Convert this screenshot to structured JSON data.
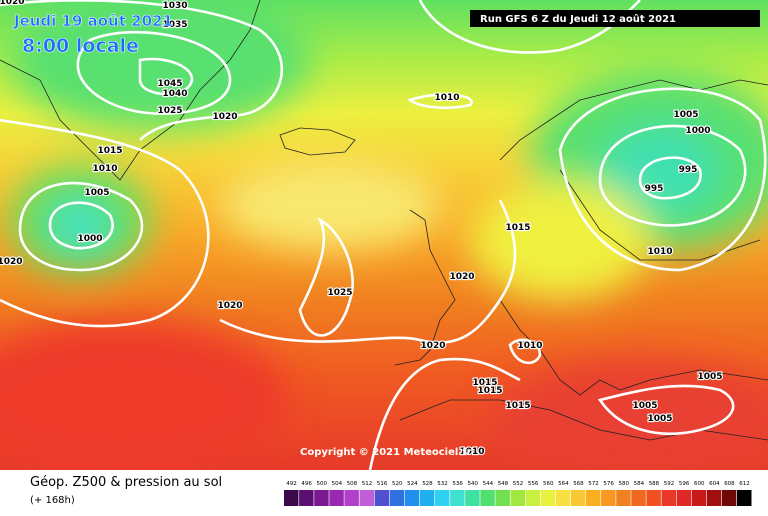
{
  "header": {
    "valid_date": "Jeudi 19 août 2021",
    "local_time": "8:00 locale",
    "run": "Run GFS 6 Z du Jeudi 12 août 2021"
  },
  "copyright": "Copyright © 2021 Meteociel.fr",
  "footer": {
    "title": "Géop. Z500 & pression au sol",
    "lead": "(+ 168h)"
  },
  "isobar_labels": [
    1020,
    1030,
    1035,
    1045,
    1040,
    1025,
    1020,
    1010,
    1005,
    1000,
    995,
    995,
    1015,
    1010,
    1005,
    1000,
    1020,
    1015,
    1010,
    1020,
    1025,
    1020,
    1020,
    1010,
    1015,
    1015,
    1005,
    1015,
    1005,
    1005,
    1010
  ],
  "colorbar": {
    "values": [
      492,
      496,
      500,
      504,
      508,
      512,
      516,
      520,
      524,
      528,
      532,
      536,
      540,
      544,
      548,
      552,
      556,
      560,
      564,
      568,
      572,
      576,
      580,
      584,
      588,
      592,
      596,
      600,
      604,
      608,
      612
    ],
    "colors": [
      "#3a0a4a",
      "#5a1070",
      "#7a1a90",
      "#9a28b0",
      "#b040c8",
      "#c060d8",
      "#5050d0",
      "#3070e0",
      "#2090f0",
      "#20b0f0",
      "#30d0f0",
      "#40e0d0",
      "#40e0a0",
      "#50e070",
      "#70e050",
      "#a0e840",
      "#c8f040",
      "#e8f040",
      "#f8e040",
      "#f8c830",
      "#f8b020",
      "#f89820",
      "#f08020",
      "#f06820",
      "#f05020",
      "#e83828",
      "#e02828",
      "#c81818",
      "#a01010",
      "#700808",
      "#000000"
    ]
  }
}
